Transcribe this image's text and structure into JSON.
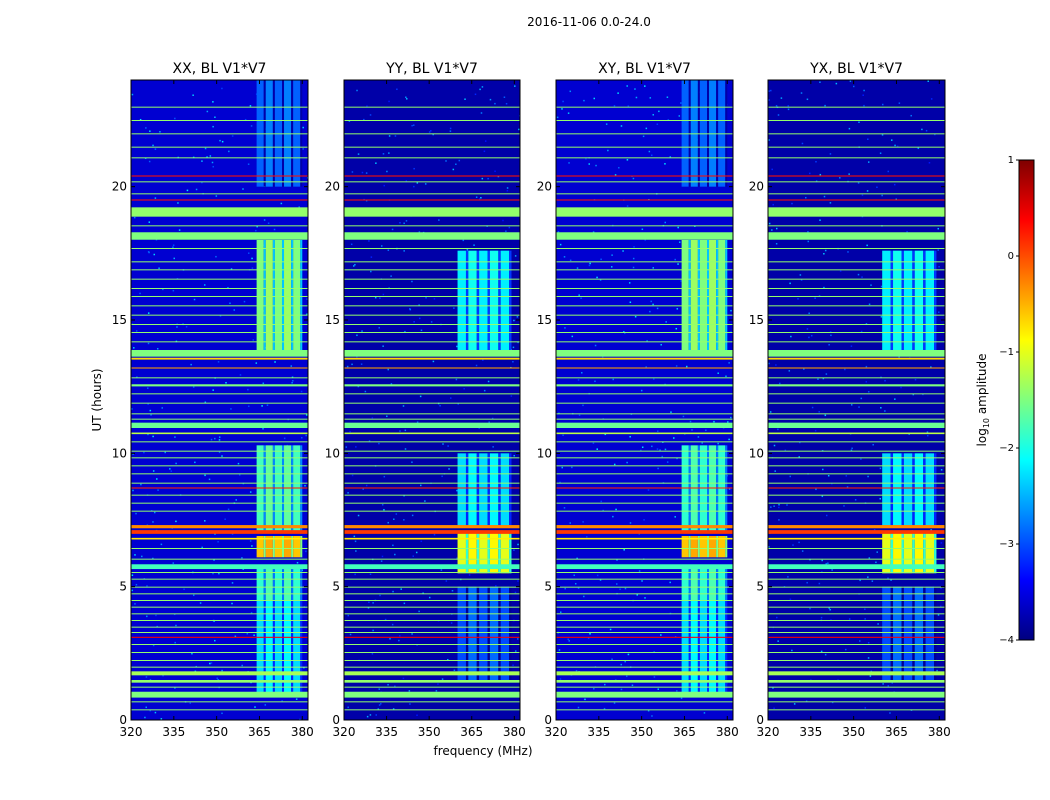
{
  "figure": {
    "suptitle": "2016-11-06 0.0-24.0",
    "xlabel": "frequency (MHz)",
    "ylabel": "UT (hours)"
  },
  "colorbar": {
    "label_prefix": "log",
    "label_sub": "10",
    "label_suffix": " amplitude",
    "range": [
      -4,
      1
    ],
    "ticks": [
      1,
      0,
      -1,
      -2,
      -3,
      -4
    ],
    "tick_labels": [
      "1",
      "0",
      "−1",
      "−2",
      "−3",
      "−4"
    ],
    "colormap": "jet",
    "stops": [
      "#00007f",
      "#0000ff",
      "#007fff",
      "#00ffff",
      "#7fff7f",
      "#ffff00",
      "#ff7f00",
      "#ff0000",
      "#7f0000"
    ]
  },
  "chart_data": [
    {
      "type": "heatmap",
      "title": "XX, BL V1*V7",
      "xlim": [
        320,
        382
      ],
      "ylim": [
        0,
        24
      ],
      "xticks": [
        320,
        335,
        350,
        365,
        380
      ],
      "xtick_labels": [
        "320",
        "335",
        "350",
        "365",
        "380"
      ],
      "yticks": [
        0,
        5,
        10,
        15,
        20
      ],
      "ytick_labels": [
        "0",
        "5",
        "10",
        "15",
        "20"
      ],
      "background_value": -3.6,
      "signal_band_mhz": [
        364,
        380
      ],
      "signal_blocks": [
        {
          "t": [
            13.8,
            18.0
          ],
          "value": -1.5
        },
        {
          "t": [
            7.1,
            10.3
          ],
          "value": -1.8
        },
        {
          "t": [
            6.1,
            6.9
          ],
          "value": -0.6
        },
        {
          "t": [
            4.5,
            5.7
          ],
          "value": -1.9
        },
        {
          "t": [
            0.9,
            4.5
          ],
          "value": -2.3
        },
        {
          "t": [
            20.0,
            24.0
          ],
          "value": -2.9
        }
      ]
    },
    {
      "type": "heatmap",
      "title": "YY, BL V1*V7",
      "xlim": [
        320,
        382
      ],
      "ylim": [
        0,
        24
      ],
      "xticks": [
        320,
        335,
        350,
        365,
        380
      ],
      "xtick_labels": [
        "320",
        "335",
        "350",
        "365",
        "380"
      ],
      "yticks": [
        0,
        5,
        10,
        15,
        20
      ],
      "ytick_labels": [
        "0",
        "5",
        "10",
        "15",
        "20"
      ],
      "background_value": -3.8,
      "signal_band_mhz": [
        360,
        379
      ],
      "signal_blocks": [
        {
          "t": [
            13.8,
            17.6
          ],
          "value": -2.2
        },
        {
          "t": [
            7.3,
            10.0
          ],
          "value": -2.3
        },
        {
          "t": [
            5.5,
            7.0
          ],
          "value": -1.0
        },
        {
          "t": [
            1.5,
            5.0
          ],
          "value": -3.0
        }
      ]
    },
    {
      "type": "heatmap",
      "title": "XY, BL V1*V7",
      "xlim": [
        320,
        382
      ],
      "ylim": [
        0,
        24
      ],
      "xticks": [
        320,
        335,
        350,
        365,
        380
      ],
      "xtick_labels": [
        "320",
        "335",
        "350",
        "365",
        "380"
      ],
      "yticks": [
        0,
        5,
        10,
        15,
        20
      ],
      "ytick_labels": [
        "0",
        "5",
        "10",
        "15",
        "20"
      ],
      "background_value": -3.6,
      "signal_band_mhz": [
        364,
        380
      ],
      "signal_blocks": [
        {
          "t": [
            13.8,
            18.0
          ],
          "value": -1.5
        },
        {
          "t": [
            7.1,
            10.3
          ],
          "value": -1.9
        },
        {
          "t": [
            6.1,
            6.9
          ],
          "value": -0.6
        },
        {
          "t": [
            4.5,
            5.7
          ],
          "value": -1.9
        },
        {
          "t": [
            0.9,
            4.5
          ],
          "value": -2.3
        },
        {
          "t": [
            20.0,
            24.0
          ],
          "value": -2.9
        }
      ]
    },
    {
      "type": "heatmap",
      "title": "YX, BL V1*V7",
      "xlim": [
        320,
        382
      ],
      "ylim": [
        0,
        24
      ],
      "xticks": [
        320,
        335,
        350,
        365,
        380
      ],
      "xtick_labels": [
        "320",
        "335",
        "350",
        "365",
        "380"
      ],
      "yticks": [
        0,
        5,
        10,
        15,
        20
      ],
      "ytick_labels": [
        "0",
        "5",
        "10",
        "15",
        "20"
      ],
      "background_value": -3.8,
      "signal_band_mhz": [
        360,
        379
      ],
      "signal_blocks": [
        {
          "t": [
            13.8,
            17.6
          ],
          "value": -2.2
        },
        {
          "t": [
            7.3,
            10.0
          ],
          "value": -2.3
        },
        {
          "t": [
            5.5,
            7.0
          ],
          "value": -1.0
        },
        {
          "t": [
            1.5,
            5.0
          ],
          "value": -3.0
        }
      ]
    }
  ],
  "rfi_lines": [
    {
      "t": 19.05,
      "dt": 0.35,
      "value": -1.4
    },
    {
      "t": 18.15,
      "dt": 0.28,
      "value": -1.5
    },
    {
      "t": 13.75,
      "dt": 0.25,
      "value": -1.5
    },
    {
      "t": 13.55,
      "dt": 0.07,
      "value": -0.7
    },
    {
      "t": 12.55,
      "dt": 0.08,
      "value": -1.5
    },
    {
      "t": 11.05,
      "dt": 0.2,
      "value": -1.6
    },
    {
      "t": 10.75,
      "dt": 0.06,
      "value": -1.2
    },
    {
      "t": 7.25,
      "dt": 0.12,
      "value": -0.3
    },
    {
      "t": 7.05,
      "dt": 0.14,
      "value": 0.1
    },
    {
      "t": 6.8,
      "dt": 0.06,
      "value": -0.8
    },
    {
      "t": 5.75,
      "dt": 0.18,
      "value": -1.8
    },
    {
      "t": 1.75,
      "dt": 0.15,
      "value": -1.3
    },
    {
      "t": 1.45,
      "dt": 0.1,
      "value": -1.4
    },
    {
      "t": 0.95,
      "dt": 0.22,
      "value": -1.5
    },
    {
      "t": 20.4,
      "dt": 0.04,
      "value": 0.3
    },
    {
      "t": 19.5,
      "dt": 0.04,
      "value": 0.3
    },
    {
      "t": 13.2,
      "dt": 0.04,
      "value": -0.4
    },
    {
      "t": 8.7,
      "dt": 0.04,
      "value": 0.2
    },
    {
      "t": 3.1,
      "dt": 0.04,
      "value": 0.4
    }
  ],
  "thin_lines_utc": [
    23.0,
    22.5,
    22.0,
    21.5,
    21.1,
    20.2,
    19.75,
    18.55,
    17.7,
    17.2,
    16.9,
    16.55,
    16.2,
    15.9,
    15.55,
    15.2,
    14.85,
    14.55,
    14.2,
    12.85,
    12.25,
    11.9,
    11.5,
    11.3,
    10.45,
    10.1,
    9.85,
    9.55,
    9.25,
    8.9,
    8.45,
    8.15,
    7.85,
    6.45,
    6.05,
    5.55,
    5.3,
    5.0,
    4.75,
    4.5,
    4.25,
    4.0,
    3.75,
    3.5,
    3.3,
    2.85,
    2.55,
    2.25,
    2.0,
    1.25,
    0.7,
    0.4
  ]
}
